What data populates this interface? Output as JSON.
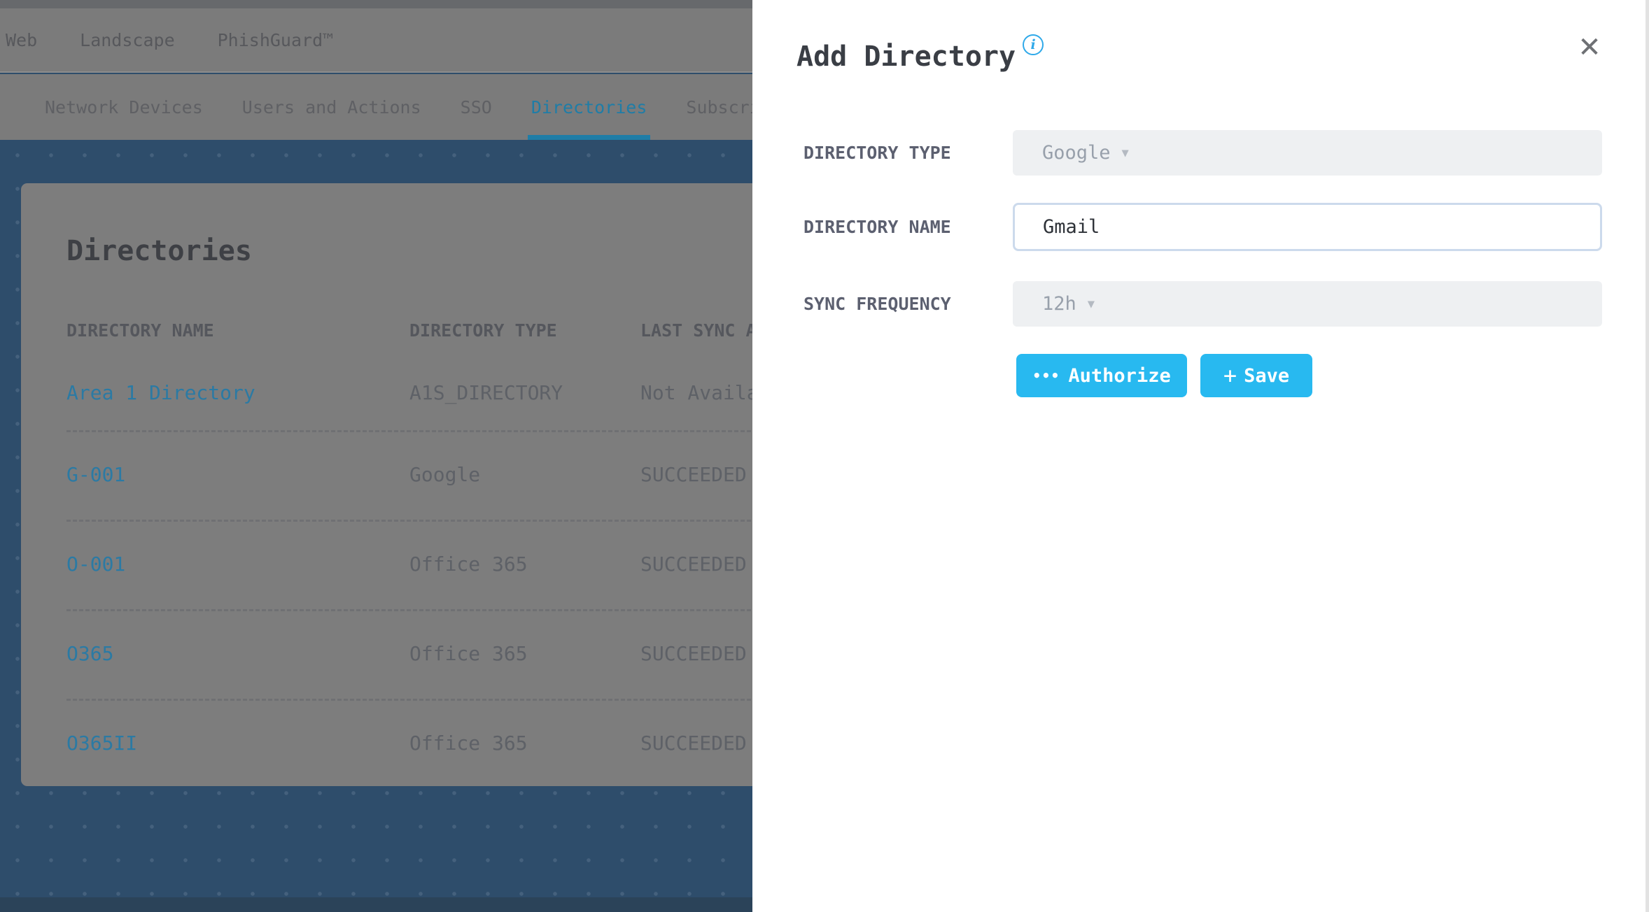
{
  "colors": {
    "accent_cyan": "#28b9f0",
    "active_tab_dimmed": "#1f7da7",
    "link_dimmed": "#2b7aa4",
    "page_blue": "#2e4d6b",
    "panel_bg": "#ffffff",
    "disabled_field_bg": "#eef0f2",
    "input_border": "#ccdaec"
  },
  "icons": {
    "info": "i",
    "close": "✕",
    "caret_down": "▼",
    "ellipsis": "•••",
    "plus": "+"
  },
  "background": {
    "topnav": {
      "items": [
        "Web",
        "Landscape",
        "PhishGuard™"
      ]
    },
    "tabs": {
      "items": [
        "Network Devices",
        "Users and Actions",
        "SSO",
        "Directories",
        "Subscriptions"
      ],
      "active": "Directories"
    },
    "card": {
      "title": "Directories",
      "table": {
        "columns": [
          "DIRECTORY NAME",
          "DIRECTORY TYPE",
          "LAST SYNC ATTEMPT"
        ],
        "rows": [
          {
            "name": "Area 1 Directory",
            "type": "A1S_DIRECTORY",
            "last_sync": "Not Available"
          },
          {
            "name": "G-001",
            "type": "Google",
            "last_sync": "SUCCEEDED"
          },
          {
            "name": "O-001",
            "type": "Office 365",
            "last_sync": "SUCCEEDED"
          },
          {
            "name": "O365",
            "type": "Office 365",
            "last_sync": "SUCCEEDED"
          },
          {
            "name": "O365II",
            "type": "Office 365",
            "last_sync": "SUCCEEDED"
          }
        ]
      }
    }
  },
  "panel": {
    "title": "Add Directory",
    "fields": [
      {
        "label": "DIRECTORY TYPE",
        "value": "Google",
        "kind": "select",
        "disabled": true
      },
      {
        "label": "DIRECTORY NAME",
        "value": "Gmail",
        "kind": "text",
        "disabled": false
      },
      {
        "label": "SYNC FREQUENCY",
        "value": "12h",
        "kind": "select",
        "disabled": true
      }
    ],
    "buttons": [
      {
        "label": "Authorize",
        "icon": "ellipsis"
      },
      {
        "label": "Save",
        "icon": "plus"
      }
    ]
  }
}
